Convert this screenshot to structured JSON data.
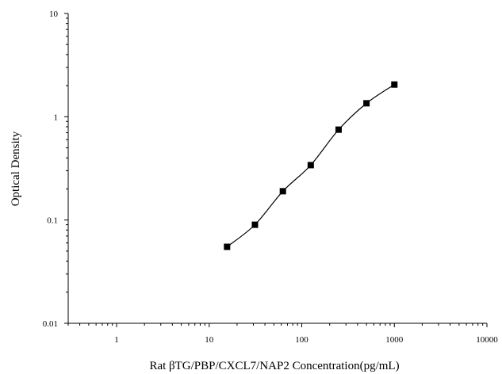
{
  "chart_data": {
    "type": "scatter",
    "title": "",
    "xlabel": "Rat βTG/PBP/CXCL7/NAP2 Concentration(pg/mL)",
    "ylabel": "Optical Density",
    "xscale": "log",
    "yscale": "log",
    "xlim": [
      0.3,
      10000
    ],
    "ylim": [
      0.01,
      10
    ],
    "x_ticks": [
      {
        "value": 1,
        "label": "1"
      },
      {
        "value": 10,
        "label": "10"
      },
      {
        "value": 100,
        "label": "100"
      },
      {
        "value": 1000,
        "label": "1000"
      },
      {
        "value": 10000,
        "label": "10000"
      }
    ],
    "y_ticks": [
      {
        "value": 0.01,
        "label": "0.01"
      },
      {
        "value": 0.1,
        "label": "0.1"
      },
      {
        "value": 1,
        "label": "1"
      },
      {
        "value": 10,
        "label": "10"
      }
    ],
    "grid": false,
    "series": [
      {
        "marker": "square",
        "color": "#000000",
        "fit_curve": true,
        "x": [
          15.6,
          31.2,
          62.5,
          125,
          250,
          500,
          1000
        ],
        "y": [
          0.055,
          0.09,
          0.19,
          0.34,
          0.75,
          1.35,
          2.05
        ]
      }
    ]
  }
}
